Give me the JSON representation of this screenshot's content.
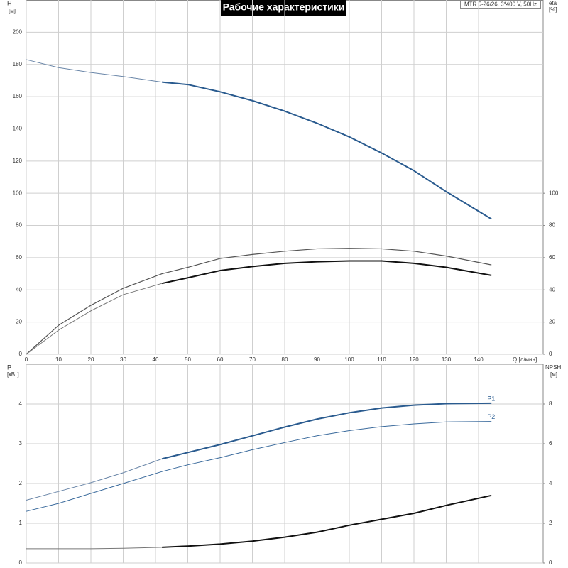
{
  "chart_data": [
    {
      "type": "line",
      "title": "Рабочие характеристики",
      "annotation": "MTR 5-26/26, 3*400 V, 50Hz",
      "xlabel": "Q [л/мин]",
      "ylabel": "H",
      "yunit": "[м]",
      "y2label": "eta",
      "y2unit": "[%]",
      "x": [
        0,
        10,
        20,
        30,
        42,
        50,
        60,
        70,
        80,
        90,
        100,
        110,
        120,
        130,
        144
      ],
      "xlim": [
        0,
        160
      ],
      "xticks": [
        0,
        10,
        20,
        30,
        40,
        50,
        60,
        70,
        80,
        90,
        100,
        110,
        120,
        130,
        140
      ],
      "ylim": [
        0,
        220
      ],
      "yticks": [
        0,
        20,
        40,
        60,
        80,
        100,
        120,
        140,
        160,
        180,
        200
      ],
      "y2lim": [
        0,
        220
      ],
      "y2ticks": [
        0,
        20,
        40,
        60,
        80,
        100
      ],
      "grid": true,
      "series": [
        {
          "color": "#6a86a8",
          "width": 1,
          "values": [
            183,
            178,
            175,
            172.5,
            169,
            null,
            null,
            null,
            null,
            null,
            null,
            null,
            null,
            null,
            null
          ]
        },
        {
          "color": "#2a5b8f",
          "width": 2,
          "values": [
            null,
            null,
            null,
            null,
            169,
            167.5,
            163,
            157.5,
            151,
            143.5,
            135,
            125,
            114,
            101,
            84
          ]
        },
        {
          "color": "#555555",
          "width": 1.2,
          "axis": "y2",
          "values": [
            0,
            18,
            30.4,
            41,
            50,
            54,
            59.5,
            62,
            64,
            65.5,
            65.8,
            65.5,
            64,
            61,
            55.5
          ]
        },
        {
          "color": "#777777",
          "width": 1,
          "axis": "y2",
          "values": [
            0,
            15,
            27,
            37,
            44,
            null,
            null,
            null,
            null,
            null,
            null,
            null,
            null,
            null,
            null
          ]
        },
        {
          "color": "#111111",
          "width": 2,
          "axis": "y2",
          "values": [
            null,
            null,
            null,
            null,
            44,
            47.5,
            52,
            54.5,
            56.5,
            57.5,
            58,
            58,
            56.5,
            54,
            49
          ]
        }
      ]
    },
    {
      "type": "line",
      "ylabel": "P",
      "yunit": "[кВт]",
      "y2label": "NPSH",
      "y2unit": "[м]",
      "x": [
        0,
        10,
        20,
        30,
        42,
        50,
        60,
        70,
        80,
        90,
        100,
        110,
        120,
        130,
        144
      ],
      "xlim": [
        0,
        160
      ],
      "xticks": [
        0,
        10,
        20,
        30,
        40,
        50,
        60,
        70,
        80,
        90,
        100,
        110,
        120,
        130,
        140
      ],
      "ylim": [
        0,
        5
      ],
      "yticks": [
        0,
        1,
        2,
        3,
        4
      ],
      "y2lim": [
        0,
        10
      ],
      "y2ticks": [
        0,
        2,
        4,
        6,
        8
      ],
      "grid": true,
      "series": [
        {
          "color": "#6a86a8",
          "width": 1,
          "values": [
            1.58,
            1.8,
            2.02,
            2.27,
            2.62,
            null,
            null,
            null,
            null,
            null,
            null,
            null,
            null,
            null,
            null
          ]
        },
        {
          "name": "P1",
          "color": "#2a5b8f",
          "width": 2,
          "values": [
            null,
            null,
            null,
            null,
            2.62,
            2.78,
            2.98,
            3.2,
            3.42,
            3.62,
            3.78,
            3.9,
            3.97,
            4.01,
            4.02
          ]
        },
        {
          "name": "P2",
          "color": "#3a6a9c",
          "width": 1,
          "values": [
            1.3,
            1.5,
            1.75,
            2.0,
            2.3,
            2.47,
            2.65,
            2.85,
            3.03,
            3.2,
            3.33,
            3.43,
            3.5,
            3.55,
            3.56
          ]
        },
        {
          "color": "#777777",
          "width": 1,
          "axis": "y2",
          "values": [
            0.72,
            0.72,
            0.72,
            0.74,
            0.79,
            null,
            null,
            null,
            null,
            null,
            null,
            null,
            null,
            null,
            null
          ]
        },
        {
          "color": "#111111",
          "width": 2,
          "axis": "y2",
          "values": [
            null,
            null,
            null,
            null,
            0.79,
            0.85,
            0.95,
            1.1,
            1.3,
            1.55,
            1.9,
            2.2,
            2.5,
            2.9,
            3.4
          ]
        }
      ]
    }
  ]
}
